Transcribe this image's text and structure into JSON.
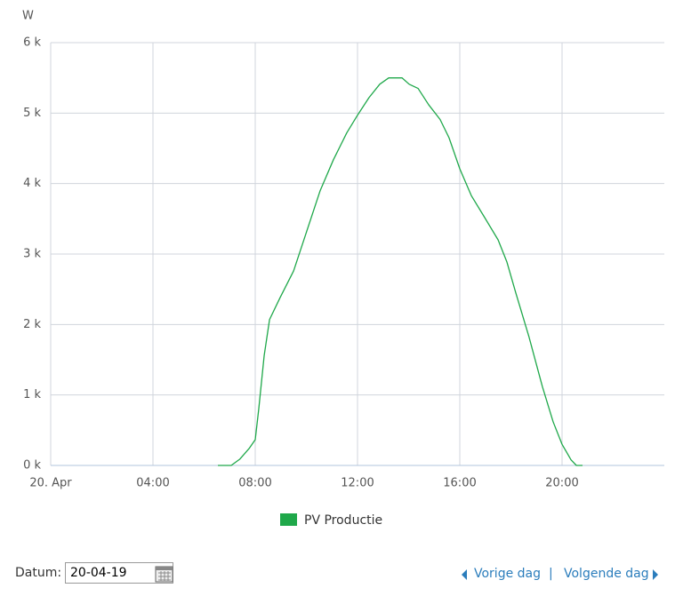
{
  "chart_data": {
    "type": "line",
    "y_unit": "W",
    "xlim": [
      0,
      24
    ],
    "xticks": [
      {
        "value": 0,
        "label": "20. Apr"
      },
      {
        "value": 4,
        "label": "04:00"
      },
      {
        "value": 8,
        "label": "08:00"
      },
      {
        "value": 12,
        "label": "12:00"
      },
      {
        "value": 16,
        "label": "16:00"
      },
      {
        "value": 20,
        "label": "20:00"
      }
    ],
    "ylim": [
      0,
      6000
    ],
    "yticks": [
      {
        "value": 0,
        "label": "0 k"
      },
      {
        "value": 1000,
        "label": "1 k"
      },
      {
        "value": 2000,
        "label": "2 k"
      },
      {
        "value": 3000,
        "label": "3 k"
      },
      {
        "value": 4000,
        "label": "4 k"
      },
      {
        "value": 5000,
        "label": "5 k"
      },
      {
        "value": 6000,
        "label": "6 k"
      }
    ],
    "grid": true,
    "legend": "bottom",
    "x": [
      6.54,
      7.06,
      7.4,
      7.76,
      8.0,
      8.14,
      8.35,
      8.56,
      8.97,
      9.5,
      10.02,
      10.54,
      11.06,
      11.58,
      12.0,
      12.45,
      12.87,
      13.22,
      13.74,
      14.02,
      14.37,
      14.78,
      15.23,
      15.58,
      16.0,
      16.45,
      16.97,
      17.5,
      17.84,
      18.19,
      18.71,
      19.23,
      19.65,
      20.0,
      20.35,
      20.56,
      20.8
    ],
    "series": [
      {
        "name": "PV Productie",
        "color": "#1fa84a",
        "values": [
          0,
          0,
          90,
          240,
          365,
          810,
          1560,
          2070,
          2380,
          2760,
          3330,
          3900,
          4340,
          4720,
          4970,
          5220,
          5410,
          5500,
          5500,
          5410,
          5350,
          5120,
          4910,
          4650,
          4210,
          3830,
          3520,
          3200,
          2890,
          2450,
          1820,
          1120,
          620,
          300,
          80,
          0,
          0
        ]
      }
    ]
  },
  "controls": {
    "date_label": "Datum:",
    "date_value": "20-04-19",
    "prev": "Vorige dag",
    "separator": "|",
    "next": "Volgende dag"
  }
}
